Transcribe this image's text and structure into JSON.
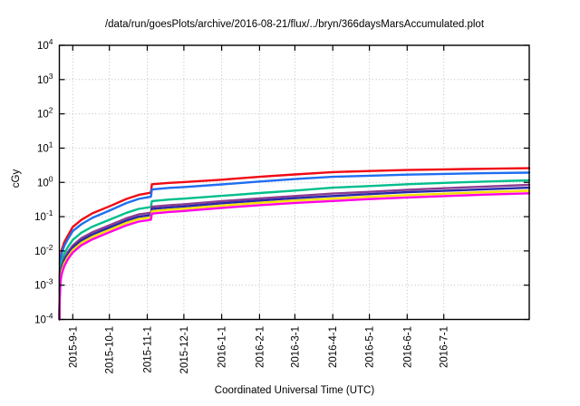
{
  "title": "/data/run/goesPlots/archive/2016-08-21/flux/../bryn/366daysMarsAccumulated.plot",
  "axes": {
    "ylabel": "cGy",
    "xlabel": "Coordinated Universal Time (UTC)",
    "y_scale": "log",
    "y_tick_exponents": [
      4,
      3,
      2,
      1,
      0,
      -1,
      -2,
      -3,
      -4
    ],
    "x_ticks": [
      {
        "label": "2015-9-1",
        "day": 11
      },
      {
        "label": "2015-10-1",
        "day": 41
      },
      {
        "label": "2015-11-1",
        "day": 72
      },
      {
        "label": "2015-12-1",
        "day": 102
      },
      {
        "label": "2016-1-1",
        "day": 133
      },
      {
        "label": "2016-2-1",
        "day": 164
      },
      {
        "label": "2016-3-1",
        "day": 193
      },
      {
        "label": "2016-4-1",
        "day": 224
      },
      {
        "label": "2016-5-1",
        "day": 254
      },
      {
        "label": "2016-6-1",
        "day": 285
      },
      {
        "label": "2016-7-1",
        "day": 315
      }
    ],
    "grid": "dotted"
  },
  "chart_data": {
    "type": "line",
    "title": "/data/run/goesPlots/archive/2016-08-21/flux/../bryn/366daysMarsAccumulated.plot",
    "xlabel": "Coordinated Universal Time (UTC)",
    "ylabel": "cGy",
    "legend": "none",
    "x_unit": "days",
    "xlim": [
      0,
      385
    ],
    "ylim": [
      0.0001,
      10000
    ],
    "x": [
      0,
      0.3,
      1,
      2,
      4,
      7,
      11,
      18,
      27,
      41,
      55,
      65,
      75,
      75.8,
      90,
      102,
      133,
      164,
      193,
      224,
      254,
      285,
      315,
      350,
      385
    ],
    "series": [
      {
        "name": "red",
        "color": "#f00a14",
        "values": [
          0.0001,
          0.002,
          0.006,
          0.011,
          0.018,
          0.028,
          0.05,
          0.08,
          0.125,
          0.2,
          0.33,
          0.43,
          0.5,
          0.88,
          0.97,
          1.02,
          1.2,
          1.45,
          1.7,
          2.0,
          2.15,
          2.3,
          2.4,
          2.5,
          2.6
        ]
      },
      {
        "name": "blue",
        "color": "#1e6ef0",
        "values": [
          0.0001,
          0.0015,
          0.0048,
          0.0085,
          0.014,
          0.022,
          0.038,
          0.06,
          0.092,
          0.15,
          0.25,
          0.33,
          0.38,
          0.62,
          0.69,
          0.73,
          0.87,
          1.06,
          1.25,
          1.45,
          1.56,
          1.68,
          1.77,
          1.85,
          1.92
        ]
      },
      {
        "name": "teal",
        "color": "#00be8c",
        "values": [
          0.0001,
          0.001,
          0.003,
          0.005,
          0.0082,
          0.013,
          0.021,
          0.034,
          0.051,
          0.081,
          0.13,
          0.168,
          0.19,
          0.285,
          0.315,
          0.335,
          0.405,
          0.49,
          0.575,
          0.7,
          0.78,
          0.88,
          0.97,
          1.06,
          1.15
        ]
      },
      {
        "name": "purple",
        "color": "#8c3c91",
        "values": [
          0.0001,
          0.0007,
          0.0021,
          0.0036,
          0.006,
          0.0092,
          0.0145,
          0.0235,
          0.035,
          0.056,
          0.09,
          0.116,
          0.13,
          0.195,
          0.215,
          0.23,
          0.283,
          0.34,
          0.4,
          0.47,
          0.53,
          0.605,
          0.675,
          0.76,
          0.85
        ]
      },
      {
        "name": "navy",
        "color": "#2828aa",
        "values": [
          0.0001,
          0.0006,
          0.0018,
          0.0031,
          0.0051,
          0.0079,
          0.0125,
          0.0202,
          0.03,
          0.048,
          0.077,
          0.099,
          0.111,
          0.168,
          0.186,
          0.199,
          0.245,
          0.295,
          0.345,
          0.4,
          0.455,
          0.515,
          0.565,
          0.63,
          0.7
        ]
      },
      {
        "name": "yellow",
        "color": "#f5e100",
        "values": [
          0.0001,
          0.0005,
          0.0015,
          0.0026,
          0.0043,
          0.0067,
          0.0106,
          0.0172,
          0.0256,
          0.041,
          0.066,
          0.085,
          0.095,
          0.144,
          0.16,
          0.171,
          0.21,
          0.253,
          0.295,
          0.335,
          0.38,
          0.425,
          0.465,
          0.52,
          0.57
        ]
      },
      {
        "name": "magenta",
        "color": "#ff00e6",
        "values": [
          0.0001,
          0.0004,
          0.0013,
          0.0022,
          0.0036,
          0.0057,
          0.009,
          0.0146,
          0.0218,
          0.035,
          0.056,
          0.072,
          0.081,
          0.123,
          0.137,
          0.146,
          0.18,
          0.216,
          0.252,
          0.286,
          0.325,
          0.363,
          0.397,
          0.44,
          0.48
        ]
      }
    ]
  }
}
